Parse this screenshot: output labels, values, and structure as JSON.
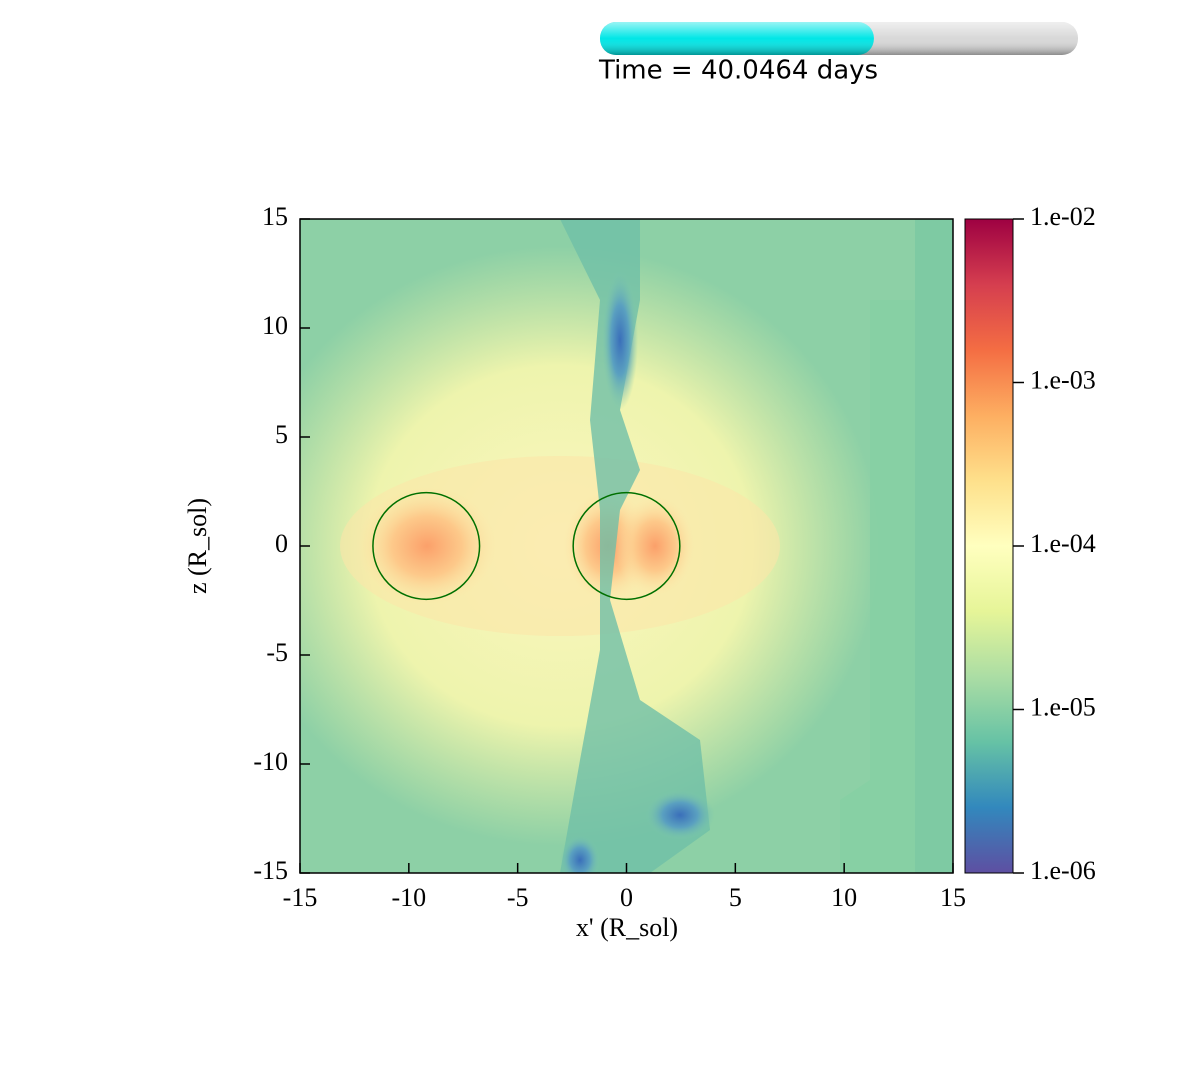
{
  "chart_data": {
    "type": "image",
    "time_label": "Time = 40.0464 days",
    "progress": 0.573,
    "progress_color": "#00e6e6",
    "xlabel": "x' (R_sol)",
    "ylabel": "z (R_sol)",
    "xlim": [
      -15,
      15
    ],
    "ylim": [
      -15,
      15
    ],
    "xticks": [
      -15,
      -10,
      -5,
      0,
      5,
      10,
      15
    ],
    "yticks": [
      -15,
      -10,
      -5,
      0,
      5,
      10,
      15
    ],
    "circles": [
      {
        "x": -9.2,
        "y": 0,
        "r": 2.45
      },
      {
        "x": 0,
        "y": 0,
        "r": 2.45
      }
    ],
    "circle_color": "#007000",
    "colorbar": {
      "log": true,
      "lim": [
        1e-06,
        0.01
      ],
      "ticks": [
        {
          "value": 1e-06,
          "label": "1.e-06"
        },
        {
          "value": 1e-05,
          "label": "1.e-05"
        },
        {
          "value": 0.0001,
          "label": "1.e-04"
        },
        {
          "value": 0.001,
          "label": "1.e-03"
        },
        {
          "value": 0.01,
          "label": "1.e-02"
        }
      ],
      "colormap": [
        "#5e4fa2",
        "#3288bd",
        "#66c2a5",
        "#abdda4",
        "#e6f598",
        "#ffffbf",
        "#fee08b",
        "#fdae61",
        "#f46d43",
        "#d53e4f",
        "#9e0142"
      ]
    }
  }
}
